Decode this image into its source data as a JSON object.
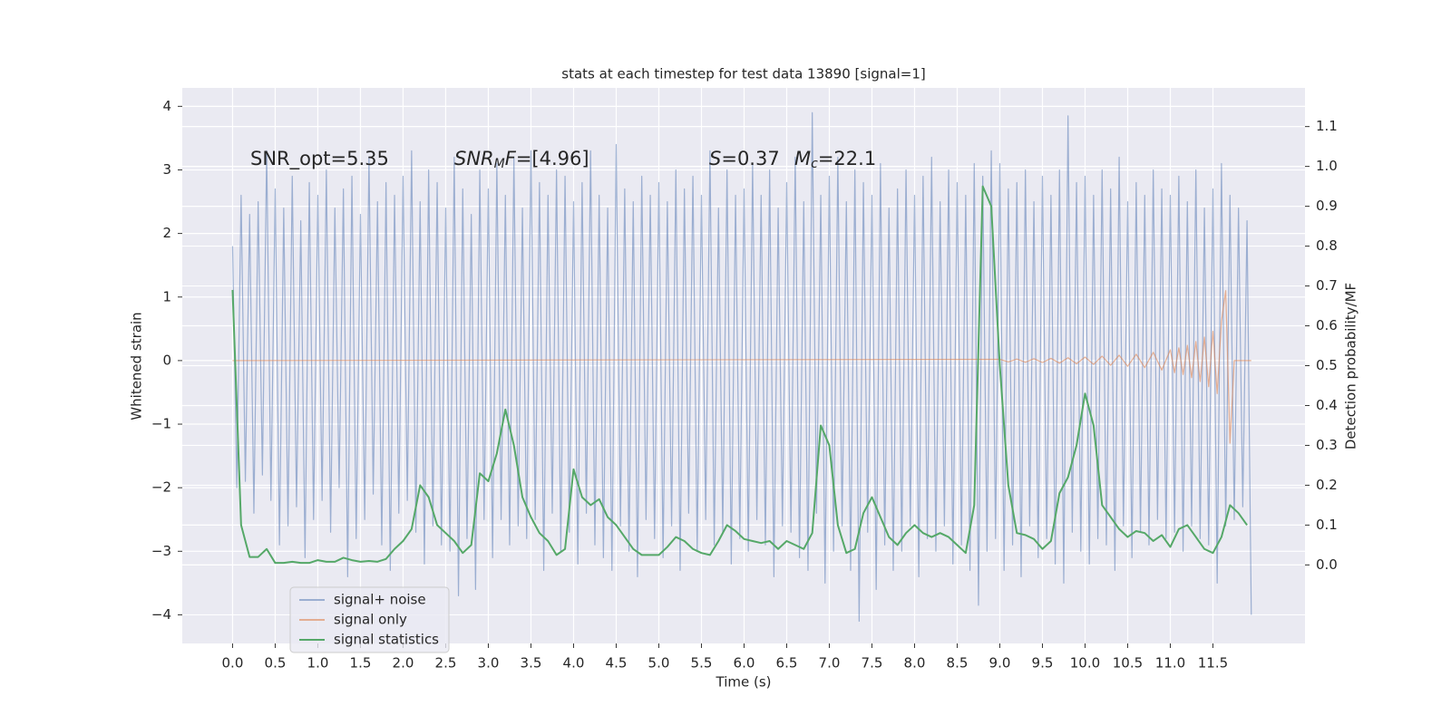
{
  "chart_data": {
    "type": "line",
    "title": "stats at each timestep for test data 13890 [signal=1]",
    "xlabel": "Time (s)",
    "ylabel": "Whitened strain",
    "y2label": "Detection probability/MF",
    "xlim": [
      -0.59,
      12.58
    ],
    "ylim": [
      -4.45,
      4.29
    ],
    "y2lim": [
      -0.197,
      1.197
    ],
    "xticks": [
      {
        "value": 0,
        "label": "0.0"
      },
      0.5,
      {
        "value": 1,
        "label": "1.0"
      },
      1.5,
      {
        "value": 2,
        "label": "2.0"
      },
      2.5,
      {
        "value": 3,
        "label": "3.0"
      },
      3.5,
      {
        "value": 4,
        "label": "4.0"
      },
      4.5,
      {
        "value": 5,
        "label": "5.0"
      },
      5.5,
      {
        "value": 6,
        "label": "6.0"
      },
      6.5,
      {
        "value": 7,
        "label": "7.0"
      },
      7.5,
      {
        "value": 8,
        "label": "8.0"
      },
      8.5,
      {
        "value": 9,
        "label": "9.0"
      },
      9.5,
      {
        "value": 10,
        "label": "10.0"
      },
      10.5,
      {
        "value": 11,
        "label": "11.0"
      },
      11.5
    ],
    "yticks": [
      {
        "value": -4,
        "label": "−4"
      },
      {
        "value": -3,
        "label": "−3"
      },
      {
        "value": -2,
        "label": "−2"
      },
      {
        "value": -1,
        "label": "−1"
      },
      0,
      1,
      2,
      3,
      4
    ],
    "y2ticks": [
      {
        "value": 0,
        "label": "0.0"
      },
      0.1,
      0.2,
      0.3,
      0.4,
      0.5,
      0.6,
      0.7,
      0.8,
      0.9,
      {
        "value": 1,
        "label": "1.0"
      },
      1.1
    ],
    "grid": true,
    "legend": "lower left",
    "annotations": [
      {
        "parts": [
          {
            "text": "SNR_opt=5.35",
            "style": "normal"
          }
        ]
      },
      {
        "parts": [
          {
            "text": "SNR",
            "style": "italic"
          },
          {
            "text": "M",
            "style": "sub"
          },
          {
            "text": "F",
            "style": "italic"
          },
          {
            "text": "=[4.96]",
            "style": "normal"
          }
        ]
      },
      {
        "parts": [
          {
            "text": "S",
            "style": "italic"
          },
          {
            "text": "=0.37",
            "style": "normal"
          }
        ]
      },
      {
        "parts": [
          {
            "text": "M",
            "style": "italic"
          },
          {
            "text": "c",
            "style": "sub"
          },
          {
            "text": "=22.1",
            "style": "normal"
          }
        ]
      }
    ],
    "series": [
      {
        "name": "signal+ noise",
        "color": "#4c72b0",
        "opacity": 0.5,
        "x": [
          0,
          0.05,
          0.1,
          0.15,
          0.2,
          0.25,
          0.3,
          0.35,
          0.4,
          0.45,
          0.5,
          0.55,
          0.6,
          0.65,
          0.7,
          0.75,
          0.8,
          0.85,
          0.9,
          0.95,
          1,
          1.05,
          1.1,
          1.15,
          1.2,
          1.25,
          1.3,
          1.35,
          1.4,
          1.45,
          1.5,
          1.55,
          1.6,
          1.65,
          1.7,
          1.75,
          1.8,
          1.85,
          1.9,
          1.95,
          2,
          2.05,
          2.1,
          2.15,
          2.2,
          2.25,
          2.3,
          2.35,
          2.4,
          2.45,
          2.5,
          2.55,
          2.6,
          2.65,
          2.7,
          2.75,
          2.8,
          2.85,
          2.9,
          2.95,
          3,
          3.05,
          3.1,
          3.15,
          3.2,
          3.25,
          3.3,
          3.35,
          3.4,
          3.45,
          3.5,
          3.55,
          3.6,
          3.65,
          3.7,
          3.75,
          3.8,
          3.85,
          3.9,
          3.95,
          4,
          4.05,
          4.1,
          4.15,
          4.2,
          4.25,
          4.3,
          4.35,
          4.4,
          4.45,
          4.5,
          4.55,
          4.6,
          4.65,
          4.7,
          4.75,
          4.8,
          4.85,
          4.9,
          4.95,
          5,
          5.05,
          5.1,
          5.15,
          5.2,
          5.25,
          5.3,
          5.35,
          5.4,
          5.45,
          5.5,
          5.55,
          5.6,
          5.65,
          5.7,
          5.75,
          5.8,
          5.85,
          5.9,
          5.95,
          6,
          6.05,
          6.1,
          6.15,
          6.2,
          6.25,
          6.3,
          6.35,
          6.4,
          6.45,
          6.5,
          6.55,
          6.6,
          6.65,
          6.7,
          6.75,
          6.8,
          6.85,
          6.9,
          6.95,
          7,
          7.05,
          7.1,
          7.15,
          7.2,
          7.25,
          7.3,
          7.35,
          7.4,
          7.45,
          7.5,
          7.55,
          7.6,
          7.65,
          7.7,
          7.75,
          7.8,
          7.85,
          7.9,
          7.95,
          8,
          8.05,
          8.1,
          8.15,
          8.2,
          8.25,
          8.3,
          8.35,
          8.4,
          8.45,
          8.5,
          8.55,
          8.6,
          8.65,
          8.7,
          8.75,
          8.8,
          8.85,
          8.9,
          8.95,
          9,
          9.05,
          9.1,
          9.15,
          9.2,
          9.25,
          9.3,
          9.35,
          9.4,
          9.45,
          9.5,
          9.55,
          9.6,
          9.65,
          9.7,
          9.75,
          9.8,
          9.85,
          9.9,
          9.95,
          10,
          10.05,
          10.1,
          10.15,
          10.2,
          10.25,
          10.3,
          10.35,
          10.4,
          10.45,
          10.5,
          10.55,
          10.6,
          10.65,
          10.7,
          10.75,
          10.8,
          10.85,
          10.9,
          10.95,
          11,
          11.05,
          11.1,
          11.15,
          11.2,
          11.25,
          11.3,
          11.35,
          11.4,
          11.45,
          11.5,
          11.55,
          11.6,
          11.65,
          11.7,
          11.75,
          11.8,
          11.85,
          11.9,
          11.95
        ],
        "values": [
          1.8,
          -2.0,
          2.6,
          -1.9,
          2.3,
          -2.4,
          2.5,
          -1.8,
          3.3,
          -2.2,
          2.7,
          -2.9,
          2.4,
          -2.6,
          2.9,
          -2.3,
          2.2,
          -3.1,
          2.8,
          -2.5,
          2.6,
          -2.2,
          3.0,
          -2.7,
          2.4,
          -2.0,
          2.7,
          -3.4,
          2.9,
          -2.8,
          2.3,
          -2.5,
          3.2,
          -2.1,
          2.5,
          -2.9,
          2.8,
          -3.3,
          2.6,
          -2.4,
          2.9,
          -2.2,
          3.3,
          -2.7,
          2.5,
          -3.2,
          3.0,
          -2.6,
          2.8,
          -2.9,
          2.4,
          -3.0,
          3.2,
          -3.7,
          2.7,
          -2.8,
          2.3,
          -3.6,
          3.0,
          -2.5,
          2.7,
          -3.1,
          3.1,
          -2.5,
          2.6,
          -2.9,
          3.2,
          -2.6,
          2.4,
          -2.8,
          3.3,
          -2.5,
          2.8,
          -3.3,
          2.6,
          -2.4,
          3.0,
          -3.0,
          2.9,
          -2.7,
          2.5,
          -3.2,
          2.8,
          -2.4,
          3.3,
          -2.9,
          2.6,
          -3.1,
          2.4,
          -3.3,
          3.4,
          -2.6,
          2.7,
          -3.0,
          2.5,
          -3.4,
          2.9,
          -2.5,
          2.6,
          -2.8,
          2.8,
          -3.1,
          2.5,
          -2.6,
          3.0,
          -3.3,
          2.7,
          -2.4,
          2.9,
          -3.0,
          2.6,
          -2.5,
          3.3,
          -2.9,
          2.4,
          -2.7,
          3.0,
          -3.2,
          2.6,
          -2.8,
          2.7,
          -3.0,
          3.1,
          -2.5,
          2.6,
          -2.9,
          3.0,
          -3.4,
          2.4,
          -2.6,
          2.8,
          -2.7,
          3.2,
          -3.1,
          2.5,
          -3.3,
          3.9,
          -2.4,
          2.6,
          -3.5,
          2.9,
          -3.0,
          3.2,
          -2.6,
          2.5,
          -3.3,
          3.0,
          -4.1,
          2.8,
          -2.7,
          2.6,
          -3.6,
          3.1,
          -2.9,
          2.4,
          -3.3,
          2.7,
          -3.0,
          3.0,
          -2.6,
          2.6,
          -3.4,
          2.9,
          -2.8,
          3.2,
          -3.0,
          2.5,
          -2.6,
          3.0,
          -3.2,
          2.8,
          -2.9,
          2.6,
          -3.3,
          3.1,
          -3.85,
          2.9,
          -3.0,
          3.3,
          -2.8,
          3.1,
          -3.3,
          2.7,
          -2.9,
          2.8,
          -3.4,
          3.0,
          -2.6,
          2.5,
          -3.1,
          2.9,
          -2.8,
          2.6,
          -3.2,
          3.0,
          -3.5,
          3.85,
          -2.7,
          2.8,
          -3.0,
          2.9,
          -3.2,
          2.6,
          -2.8,
          3.0,
          -2.9,
          2.7,
          -3.3,
          3.2,
          -2.6,
          2.5,
          -3.1,
          2.8,
          -2.7,
          2.6,
          -2.9,
          3.0,
          -2.5,
          2.7,
          -2.8,
          2.6,
          -2.7,
          2.9,
          -3.0,
          2.5,
          -2.6,
          3.0,
          -2.8,
          2.4,
          -2.9,
          2.7,
          -3.5,
          3.1,
          -2.6,
          2.6,
          -2.5,
          2.4,
          -2.3,
          2.2,
          -4.0
        ]
      },
      {
        "name": "signal only",
        "color": "#dd8452",
        "opacity": 0.6,
        "x": [
          0,
          9,
          9.1,
          9.2,
          9.3,
          9.4,
          9.5,
          9.6,
          9.7,
          9.8,
          9.9,
          10,
          10.1,
          10.2,
          10.3,
          10.4,
          10.5,
          10.6,
          10.7,
          10.8,
          10.9,
          11,
          11.05,
          11.1,
          11.15,
          11.2,
          11.25,
          11.3,
          11.35,
          11.4,
          11.45,
          11.5,
          11.55,
          11.6,
          11.65,
          11.7,
          11.75,
          11.95
        ],
        "values": [
          0,
          0.02,
          -0.02,
          0.025,
          -0.025,
          0.03,
          -0.03,
          0.035,
          -0.04,
          0.045,
          -0.05,
          0.055,
          -0.06,
          0.07,
          -0.075,
          0.085,
          -0.09,
          0.1,
          -0.11,
          0.13,
          -0.15,
          0.17,
          -0.19,
          0.2,
          -0.22,
          0.24,
          -0.27,
          0.3,
          -0.33,
          0.37,
          -0.41,
          0.46,
          -0.52,
          0.62,
          1.1,
          -1.3,
          0,
          0
        ]
      },
      {
        "name": "signal statistics",
        "color": "#55a868",
        "opacity": 1,
        "axis": "y2",
        "x": [
          0,
          0.1,
          0.2,
          0.3,
          0.4,
          0.5,
          0.6,
          0.7,
          0.8,
          0.9,
          1,
          1.1,
          1.2,
          1.3,
          1.4,
          1.5,
          1.6,
          1.7,
          1.8,
          1.9,
          2,
          2.1,
          2.2,
          2.3,
          2.4,
          2.5,
          2.6,
          2.7,
          2.8,
          2.9,
          3,
          3.1,
          3.2,
          3.3,
          3.4,
          3.5,
          3.6,
          3.7,
          3.8,
          3.9,
          4,
          4.1,
          4.2,
          4.3,
          4.4,
          4.5,
          4.6,
          4.7,
          4.8,
          4.9,
          5,
          5.1,
          5.2,
          5.3,
          5.4,
          5.5,
          5.6,
          5.7,
          5.8,
          5.9,
          6,
          6.1,
          6.2,
          6.3,
          6.4,
          6.5,
          6.6,
          6.7,
          6.8,
          6.9,
          7,
          7.1,
          7.2,
          7.3,
          7.4,
          7.5,
          7.6,
          7.7,
          7.8,
          7.9,
          8,
          8.1,
          8.2,
          8.3,
          8.4,
          8.5,
          8.6,
          8.7,
          8.8,
          8.9,
          9,
          9.1,
          9.2,
          9.3,
          9.4,
          9.5,
          9.6,
          9.7,
          9.8,
          9.9,
          10,
          10.1,
          10.2,
          10.3,
          10.4,
          10.5,
          10.6,
          10.7,
          10.8,
          10.9,
          11,
          11.1,
          11.2,
          11.3,
          11.4,
          11.5,
          11.6,
          11.7,
          11.8,
          11.9
        ],
        "values": [
          0.69,
          0.1,
          0.02,
          0.02,
          0.04,
          0.005,
          0.005,
          0.008,
          0.005,
          0.005,
          0.012,
          0.008,
          0.008,
          0.018,
          0.012,
          0.008,
          0.01,
          0.008,
          0.015,
          0.04,
          0.06,
          0.09,
          0.2,
          0.17,
          0.1,
          0.08,
          0.06,
          0.03,
          0.05,
          0.23,
          0.21,
          0.28,
          0.39,
          0.3,
          0.17,
          0.12,
          0.08,
          0.06,
          0.025,
          0.04,
          0.24,
          0.17,
          0.15,
          0.165,
          0.12,
          0.1,
          0.07,
          0.04,
          0.025,
          0.025,
          0.025,
          0.045,
          0.07,
          0.06,
          0.04,
          0.03,
          0.025,
          0.06,
          0.1,
          0.085,
          0.065,
          0.06,
          0.055,
          0.06,
          0.04,
          0.06,
          0.05,
          0.04,
          0.08,
          0.35,
          0.3,
          0.1,
          0.03,
          0.04,
          0.13,
          0.17,
          0.12,
          0.07,
          0.05,
          0.08,
          0.1,
          0.08,
          0.07,
          0.08,
          0.07,
          0.05,
          0.03,
          0.15,
          0.95,
          0.9,
          0.5,
          0.2,
          0.08,
          0.075,
          0.065,
          0.04,
          0.06,
          0.18,
          0.22,
          0.3,
          0.43,
          0.35,
          0.15,
          0.12,
          0.09,
          0.07,
          0.085,
          0.08,
          0.06,
          0.075,
          0.045,
          0.09,
          0.1,
          0.07,
          0.04,
          0.03,
          0.07,
          0.15,
          0.13,
          0.1
        ]
      }
    ]
  }
}
